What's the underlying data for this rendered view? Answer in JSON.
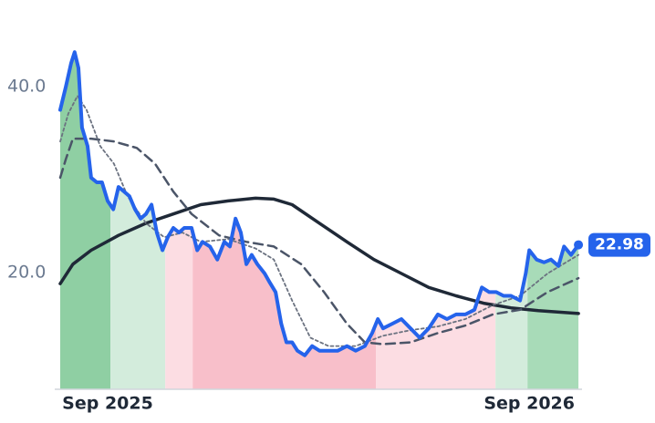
{
  "chart_data": {
    "type": "line",
    "xlim": [
      -1.35,
      13.45
    ],
    "ylim": [
      7.45,
      45.39
    ],
    "xticks": [
      {
        "value": 0,
        "label": "Sep 2025"
      },
      {
        "value": 12,
        "label": "Sep 2026"
      }
    ],
    "yticks": [
      {
        "value": 20,
        "label": "20.0"
      },
      {
        "value": 40,
        "label": "40.0"
      }
    ],
    "grid": false,
    "regions": [
      {
        "x": [
          -1.35,
          0.08
        ],
        "color": "#8fcfa3"
      },
      {
        "x": [
          0.08,
          1.64
        ],
        "color": "#d3ecdc"
      },
      {
        "x": [
          1.64,
          2.42
        ],
        "color": "#fcdde3"
      },
      {
        "x": [
          2.42,
          7.64
        ],
        "color": "#f8bfca"
      },
      {
        "x": [
          7.64,
          11.04
        ],
        "color": "#fcdde3"
      },
      {
        "x": [
          11.04,
          11.95
        ],
        "color": "#d3ecdc"
      },
      {
        "x": [
          11.95,
          13.4
        ],
        "color": "#a8dbb8"
      }
    ],
    "series": [
      {
        "color": "#1f2937",
        "style": "solid",
        "width": 3.5,
        "x": [
          -1.35,
          -0.99,
          -0.47,
          0.31,
          1.09,
          1.87,
          2.65,
          3.43,
          4.21,
          4.73,
          5.25,
          6.03,
          6.81,
          7.58,
          8.36,
          9.14,
          9.92,
          10.7,
          11.48,
          12.26,
          13.4
        ],
        "values": [
          18.8,
          20.9,
          22.4,
          24.0,
          25.3,
          26.3,
          27.3,
          27.7,
          28.0,
          27.9,
          27.3,
          25.3,
          23.3,
          21.4,
          19.9,
          18.4,
          17.5,
          16.7,
          16.2,
          15.9,
          15.6
        ]
      },
      {
        "color": "#4b5568",
        "style": "dashed",
        "width": 2.5,
        "x": [
          -1.35,
          -1.19,
          -0.99,
          -0.47,
          0.18,
          0.83,
          1.35,
          1.87,
          2.39,
          3.17,
          3.95,
          4.73,
          5.51,
          6.16,
          6.81,
          7.32,
          7.84,
          8.62,
          9.4,
          10.18,
          10.96,
          11.74,
          12.52,
          13.4
        ],
        "values": [
          30.2,
          32.2,
          34.4,
          34.4,
          34.1,
          33.4,
          31.7,
          28.7,
          26.3,
          24.0,
          23.3,
          22.8,
          20.9,
          17.9,
          14.5,
          12.5,
          12.3,
          12.5,
          13.5,
          14.3,
          15.5,
          16.0,
          17.9,
          19.4
        ]
      },
      {
        "color": "#6b7280",
        "style": "dotted",
        "width": 1.8,
        "x": [
          -1.35,
          -1.12,
          -0.86,
          -0.6,
          -0.21,
          0.18,
          0.57,
          1.09,
          1.61,
          2.13,
          2.65,
          3.43,
          4.21,
          4.73,
          5.25,
          5.77,
          6.29,
          7.06,
          7.84,
          8.62,
          9.4,
          10.18,
          10.96,
          11.74,
          12.52,
          13.4
        ],
        "values": [
          34.1,
          37.1,
          39.0,
          37.5,
          33.6,
          31.7,
          28.2,
          25.3,
          23.8,
          24.3,
          23.3,
          23.6,
          22.6,
          21.4,
          17.0,
          13.0,
          12.1,
          12.1,
          13.2,
          13.8,
          14.2,
          15.0,
          16.5,
          17.5,
          19.9,
          21.9
        ]
      },
      {
        "color": "#2563eb",
        "style": "solid",
        "width": 4,
        "main": true,
        "x": [
          -1.35,
          -1.19,
          -1.04,
          -0.94,
          -0.83,
          -0.73,
          -0.57,
          -0.47,
          -0.31,
          -0.16,
          0,
          0.16,
          0.31,
          0.47,
          0.62,
          0.78,
          0.94,
          1.09,
          1.25,
          1.4,
          1.56,
          1.71,
          1.87,
          2.03,
          2.18,
          2.39,
          2.55,
          2.7,
          2.91,
          3.12,
          3.32,
          3.48,
          3.64,
          3.79,
          3.95,
          4.1,
          4.26,
          4.47,
          4.62,
          4.78,
          4.94,
          5.09,
          5.25,
          5.4,
          5.61,
          5.82,
          6.03,
          6.29,
          6.55,
          6.81,
          7.06,
          7.32,
          7.53,
          7.69,
          7.84,
          8.1,
          8.36,
          8.62,
          8.88,
          9.14,
          9.4,
          9.66,
          9.92,
          10.18,
          10.44,
          10.65,
          10.86,
          11.06,
          11.27,
          11.48,
          11.74,
          11.9,
          12.0,
          12.21,
          12.42,
          12.62,
          12.83,
          12.99,
          13.19,
          13.4
        ],
        "values": [
          37.5,
          40,
          42.5,
          43.7,
          42,
          35.6,
          33.6,
          30.2,
          29.7,
          29.7,
          27.7,
          26.8,
          29.2,
          28.7,
          28.2,
          26.8,
          25.8,
          26.3,
          27.3,
          24.3,
          22.4,
          23.8,
          24.8,
          24.3,
          24.8,
          24.8,
          22.4,
          23.3,
          22.8,
          21.4,
          23.3,
          22.8,
          25.8,
          24.3,
          20.9,
          21.9,
          20.9,
          19.9,
          18.9,
          17.9,
          14.5,
          12.5,
          12.5,
          11.6,
          11.1,
          12.1,
          11.6,
          11.6,
          11.6,
          12.1,
          11.6,
          12.1,
          13.5,
          15.0,
          14.0,
          14.5,
          15.0,
          14.0,
          13.0,
          14.0,
          15.5,
          15.0,
          15.5,
          15.5,
          16.0,
          18.4,
          17.9,
          17.9,
          17.5,
          17.5,
          17.0,
          19.9,
          22.4,
          21.4,
          21.1,
          21.4,
          20.7,
          22.8,
          21.9,
          22.98
        ]
      }
    ]
  }
}
